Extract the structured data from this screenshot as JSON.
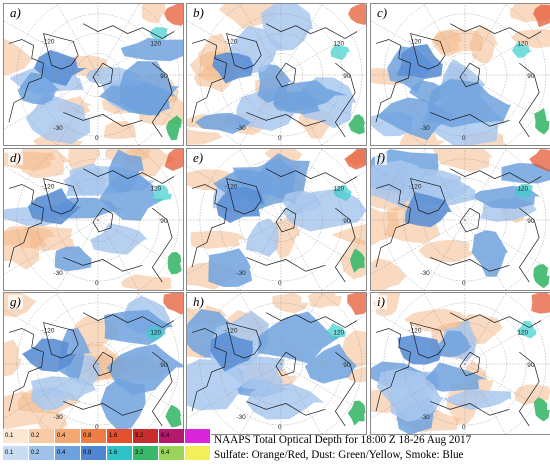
{
  "figure": {
    "caption_line1": "NAAPS Total Optical Depth for 18:00 Z 18-26 Aug 2017",
    "caption_line2": "Sulfate: Orange/Red, Dust: Green/Yellow, Smoke: Blue"
  },
  "panels": [
    {
      "label": "a)"
    },
    {
      "label": "b)"
    },
    {
      "label": "c)"
    },
    {
      "label": "d)"
    },
    {
      "label": "e)"
    },
    {
      "label": "f)"
    },
    {
      "label": "g)"
    },
    {
      "label": "h)"
    },
    {
      "label": "i)"
    }
  ],
  "map_ticks": {
    "lon_left": "-120",
    "lon_right": "120",
    "lon_mid": "90",
    "lat_low": "-30",
    "bottom": "0"
  },
  "legend": {
    "rows": [
      {
        "name": "sulfate-dust",
        "items": [
          {
            "value": "0.1",
            "color": "#fbe7d3"
          },
          {
            "value": "0.2",
            "color": "#f7cba5"
          },
          {
            "value": "0.4",
            "color": "#f4a872"
          },
          {
            "value": "0.8",
            "color": "#ee7d43"
          },
          {
            "value": "1.6",
            "color": "#e4502b"
          },
          {
            "value": "3.2",
            "color": "#c72d2d"
          },
          {
            "value": "6.4",
            "color": "#b4196e"
          },
          {
            "value": "",
            "color": "#d926d9"
          }
        ]
      },
      {
        "name": "smoke",
        "items": [
          {
            "value": "0.1",
            "color": "#c8dcf3"
          },
          {
            "value": "0.2",
            "color": "#9fc2ea"
          },
          {
            "value": "0.4",
            "color": "#6ea2df"
          },
          {
            "value": "0.8",
            "color": "#4f86d2"
          },
          {
            "value": "1.6",
            "color": "#2fc2c8"
          },
          {
            "value": "3.2",
            "color": "#3ab86a"
          },
          {
            "value": "6.4",
            "color": "#9bd45a"
          },
          {
            "value": "",
            "color": "#f3ef5a"
          }
        ]
      }
    ]
  },
  "colors": {
    "smoke": "#6ea2df",
    "smoke_light": "#a9c8ee",
    "sulfate": "#f4b98a",
    "dust": "#3ab86a",
    "coast": "#1a1a1a",
    "grid": "#9a9a9a"
  }
}
